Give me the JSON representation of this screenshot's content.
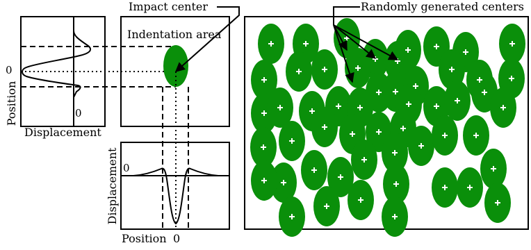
{
  "labels": {
    "impact_center": "Impact center",
    "indentation_area": "Indentation area",
    "randomly_generated_centers": "Randomly generated centers",
    "left_ylabel": "Position",
    "left_xlabel": "Displacement",
    "left_zero_y": "0",
    "left_zero_x": "0",
    "bottom_ylabel": "Displacement",
    "bottom_xlabel": "Position",
    "bottom_zero_y": "0",
    "bottom_zero_x": "0"
  },
  "colors": {
    "ellipse_fill": "#0a8f0a",
    "plus": "#ffffff",
    "line": "#000000"
  }
}
